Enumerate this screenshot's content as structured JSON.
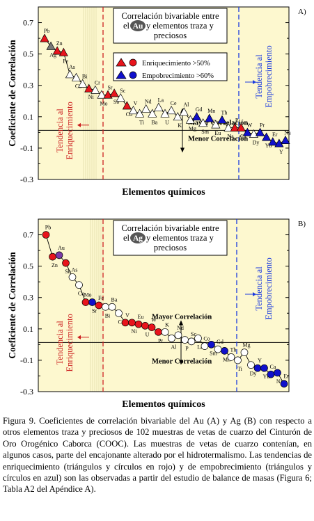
{
  "colors": {
    "panel_bg": "#fdf8cf",
    "enrich": "#e8141c",
    "deplete": "#1010cc",
    "neutral": "#ffffff",
    "element_grey": "#777777",
    "element_purple": "#7a3aa8",
    "enrich_line": "#cc1f1f",
    "deplete_line": "#1a3adf"
  },
  "shared": {
    "ylabel": "Coeficiente de  Correlación",
    "xlabel": "Elementos químicos",
    "mayor": "Mayor Correlación",
    "menor": "Menor Correlación",
    "tend_enr": [
      "Tendencia al",
      "Enriquecimiento"
    ],
    "tend_emp": [
      "Tendencia al",
      "Empobrecimiento"
    ],
    "yticks": [
      "0.7",
      "0.5",
      "0.3",
      "0.1",
      "-0.1",
      "-0.3"
    ]
  },
  "legend": {
    "enrich": "Enriquecimiento >50%",
    "deplete": "Empobrecimiento >60%"
  },
  "chart_data": [
    {
      "type": "scatter",
      "panel_label": "A)",
      "title_lines": [
        "Correlación bivariable entre",
        "el",
        "Au",
        "y elementos traza y",
        "preciosos"
      ],
      "ylim": [
        -0.3,
        0.8
      ],
      "marker": "triangle",
      "points": [
        {
          "el": "Pb",
          "y": 0.6,
          "c": "enrich"
        },
        {
          "el": "Ag",
          "y": 0.55,
          "c": "grey"
        },
        {
          "el": "Zn",
          "y": 0.52,
          "c": "enrich"
        },
        {
          "el": "Fe",
          "y": 0.51,
          "c": "enrich"
        },
        {
          "el": "As",
          "y": 0.37,
          "c": "neutral"
        },
        {
          "el": "Cu",
          "y": 0.35,
          "c": "neutral"
        },
        {
          "el": "Bi",
          "y": 0.31,
          "c": "neutral"
        },
        {
          "el": "Ni",
          "y": 0.28,
          "c": "enrich"
        },
        {
          "el": "Cr",
          "y": 0.27,
          "c": "neutral"
        },
        {
          "el": "Mo",
          "y": 0.24,
          "c": "neutral"
        },
        {
          "el": "Sr",
          "y": 0.24,
          "c": "enrich"
        },
        {
          "el": "Sb",
          "y": 0.25,
          "c": "enrich"
        },
        {
          "el": "Sc",
          "y": 0.22,
          "c": "neutral"
        },
        {
          "el": "Co",
          "y": 0.17,
          "c": "enrich"
        },
        {
          "el": "V",
          "y": 0.14,
          "c": "neutral"
        },
        {
          "el": "Ti",
          "y": 0.12,
          "c": "neutral"
        },
        {
          "el": "Nd",
          "y": 0.15,
          "c": "neutral"
        },
        {
          "el": "Ba",
          "y": 0.12,
          "c": "neutral"
        },
        {
          "el": "La",
          "y": 0.16,
          "c": "neutral"
        },
        {
          "el": "U",
          "y": 0.12,
          "c": "neutral"
        },
        {
          "el": "Ce",
          "y": 0.14,
          "c": "neutral"
        },
        {
          "el": "K",
          "y": 0.1,
          "c": "neutral"
        },
        {
          "el": "Al",
          "y": 0.13,
          "c": "neutral"
        },
        {
          "el": "Mg",
          "y": 0.08,
          "c": "neutral"
        },
        {
          "el": "Gd",
          "y": 0.1,
          "c": "deplete"
        },
        {
          "el": "Sm",
          "y": 0.06,
          "c": "neutral"
        },
        {
          "el": "Mn",
          "y": 0.09,
          "c": "deplete"
        },
        {
          "el": "Eu",
          "y": 0.05,
          "c": "neutral"
        },
        {
          "el": "Th",
          "y": 0.08,
          "c": "deplete"
        },
        {
          "el": "Na",
          "y": 0.03,
          "c": "neutral"
        },
        {
          "el": "P",
          "y": 0.03,
          "c": "enrich"
        },
        {
          "el": "Ca",
          "y": 0.03,
          "c": "enrich"
        },
        {
          "el": "W",
          "y": 0.0,
          "c": "deplete"
        },
        {
          "el": "Dy",
          "y": -0.01,
          "c": "neutral"
        },
        {
          "el": "Pr",
          "y": 0.0,
          "c": "deplete"
        },
        {
          "el": "Yb",
          "y": -0.03,
          "c": "deplete"
        },
        {
          "el": "Er",
          "y": -0.06,
          "c": "deplete"
        },
        {
          "el": "Y",
          "y": -0.07,
          "c": "deplete"
        },
        {
          "el": "Na",
          "y": -0.05,
          "c": "deplete"
        }
      ]
    },
    {
      "type": "scatter",
      "panel_label": "B)",
      "title_lines": [
        "Correlación bivariable entre",
        "el",
        "Ag",
        "y elementos traza y",
        "preciosos"
      ],
      "ylim": [
        -0.3,
        0.8
      ],
      "marker": "circle",
      "points": [
        {
          "el": "Pb",
          "y": 0.7,
          "c": "enrich"
        },
        {
          "el": "Zn",
          "y": 0.56,
          "c": "enrich"
        },
        {
          "el": "Au",
          "y": 0.57,
          "c": "purple"
        },
        {
          "el": "Sb",
          "y": 0.52,
          "c": "enrich"
        },
        {
          "el": "As",
          "y": 0.43,
          "c": "neutral"
        },
        {
          "el": "Cu",
          "y": 0.38,
          "c": "neutral"
        },
        {
          "el": "Mo",
          "y": 0.27,
          "c": "enrich"
        },
        {
          "el": "Sr",
          "y": 0.27,
          "c": "deplete"
        },
        {
          "el": "Fe",
          "y": 0.25,
          "c": "enrich"
        },
        {
          "el": "Bi",
          "y": 0.24,
          "c": "neutral"
        },
        {
          "el": "Ba",
          "y": 0.24,
          "c": "neutral"
        },
        {
          "el": "Cr",
          "y": 0.2,
          "c": "neutral"
        },
        {
          "el": "V",
          "y": 0.14,
          "c": "enrich"
        },
        {
          "el": "Ni",
          "y": 0.14,
          "c": "enrich"
        },
        {
          "el": "Eu",
          "y": 0.13,
          "c": "enrich"
        },
        {
          "el": "U",
          "y": 0.12,
          "c": "enrich"
        },
        {
          "el": "W",
          "y": 0.11,
          "c": "enrich"
        },
        {
          "el": "Pr",
          "y": 0.08,
          "c": "enrich"
        },
        {
          "el": "K",
          "y": 0.08,
          "c": "neutral"
        },
        {
          "el": "Al",
          "y": 0.04,
          "c": "neutral"
        },
        {
          "el": "Nd",
          "y": 0.06,
          "c": "neutral"
        },
        {
          "el": "P",
          "y": 0.03,
          "c": "neutral"
        },
        {
          "el": "Sc",
          "y": 0.02,
          "c": "neutral"
        },
        {
          "el": "La",
          "y": 0.04,
          "c": "neutral"
        },
        {
          "el": "Co",
          "y": -0.01,
          "c": "neutral"
        },
        {
          "el": "Sm",
          "y": 0.0,
          "c": "deplete"
        },
        {
          "el": "Gd",
          "y": -0.03,
          "c": "neutral"
        },
        {
          "el": "Mn",
          "y": -0.04,
          "c": "deplete"
        },
        {
          "el": "Th",
          "y": -0.08,
          "c": "neutral"
        },
        {
          "el": "Ti",
          "y": -0.1,
          "c": "neutral"
        },
        {
          "el": "Mg",
          "y": -0.05,
          "c": "neutral"
        },
        {
          "el": "Dy",
          "y": -0.13,
          "c": "neutral"
        },
        {
          "el": "Y",
          "y": -0.15,
          "c": "deplete"
        },
        {
          "el": "Yb",
          "y": -0.15,
          "c": "deplete"
        },
        {
          "el": "Ca",
          "y": -0.19,
          "c": "deplete"
        },
        {
          "el": "Na",
          "y": -0.18,
          "c": "deplete"
        },
        {
          "el": "Er",
          "y": -0.25,
          "c": "deplete"
        }
      ]
    }
  ],
  "caption": "Figura 9. Coeficientes de correlación bivariable del Au (A) y Ag (B) con respecto a otros elementos traza y preciosos de 102 muestras de vetas de cuarzo del Cinturón de Oro Orogénico Caborca (COOC). Las muestras de vetas de cuarzo contenían, en algunos casos, parte del encajonante alterado por el hidrotermalismo. Las tendencias de enriquecimiento (triángulos y círculos en rojo) y de empobrecimiento (triángulos y círculos en azul) son las observadas a partir del estudio de balance de masas (Figura 6; Tabla A2 del Apéndice A)."
}
